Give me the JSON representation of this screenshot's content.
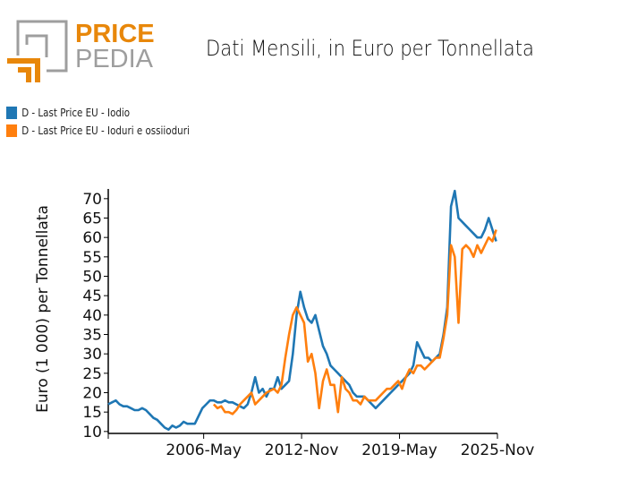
{
  "logo": {
    "text_top": "PRICE",
    "text_bottom": "PEDIA",
    "colors": {
      "orange": "#e8870a",
      "gray": "#9e9e9e"
    }
  },
  "chart_data": {
    "type": "line",
    "title": "Dati Mensili, in Euro per Tonnellata",
    "ylabel": "Euro (1 000) per Tonnellata",
    "xlabel": "",
    "ylim": [
      9.5,
      72.5
    ],
    "yticks": [
      10,
      15,
      20,
      25,
      30,
      35,
      40,
      45,
      50,
      55,
      60,
      65,
      70
    ],
    "xlim": [
      "2000-01",
      "2025-11"
    ],
    "xticks": [
      "2006-May",
      "2012-Nov",
      "2019-May",
      "2025-Nov"
    ],
    "grid": false,
    "legend_position": "top-left",
    "series": [
      {
        "name": "D - Last Price EU - Iodio",
        "color": "#1f77b4",
        "start": "2000-Q1",
        "frequency": "quarterly",
        "values": [
          17,
          17.5,
          18,
          17,
          16.5,
          16.5,
          16,
          15.5,
          15.5,
          16,
          15.5,
          14.5,
          13.5,
          13,
          12,
          11,
          10.5,
          11.5,
          11,
          11.5,
          12.5,
          12,
          12,
          12,
          14,
          16,
          17,
          18,
          18,
          17.5,
          17.5,
          18,
          17.5,
          17.5,
          17,
          16.5,
          16,
          17,
          20,
          24,
          20,
          21,
          19,
          21,
          21,
          24,
          21,
          22,
          23,
          30,
          40,
          46,
          42,
          39,
          38,
          40,
          36,
          32,
          30,
          27,
          26,
          25,
          24,
          23,
          22,
          20,
          19,
          19,
          19,
          18,
          17,
          16,
          17,
          18,
          19,
          20,
          21,
          22,
          23,
          24,
          25,
          27,
          33,
          31,
          29,
          29,
          28,
          29,
          30,
          35,
          42,
          68,
          72,
          65,
          64,
          63,
          62,
          61,
          60,
          60,
          62,
          65,
          62,
          59
        ]
      },
      {
        "name": "D - Last Price EU - Ioduri e ossiioduri",
        "color": "#ff7f0e",
        "start": "2007-Q1",
        "frequency": "quarterly",
        "values": [
          17,
          16,
          16.5,
          15,
          15,
          14.5,
          15.5,
          17,
          18,
          19,
          20,
          17,
          18,
          19,
          20,
          20.5,
          21,
          20,
          22,
          29,
          35,
          40,
          42,
          40,
          38,
          28,
          30,
          25,
          16,
          23,
          26,
          22,
          22,
          15,
          24,
          21,
          20,
          18,
          18,
          17,
          19,
          18,
          18,
          18,
          19,
          20,
          21,
          21,
          22,
          23,
          21,
          24,
          26,
          25,
          27,
          27,
          26,
          27,
          28,
          29,
          29,
          34,
          40,
          58,
          55,
          38,
          57,
          58,
          57,
          55,
          58,
          56,
          58,
          60,
          59,
          62
        ]
      }
    ]
  }
}
